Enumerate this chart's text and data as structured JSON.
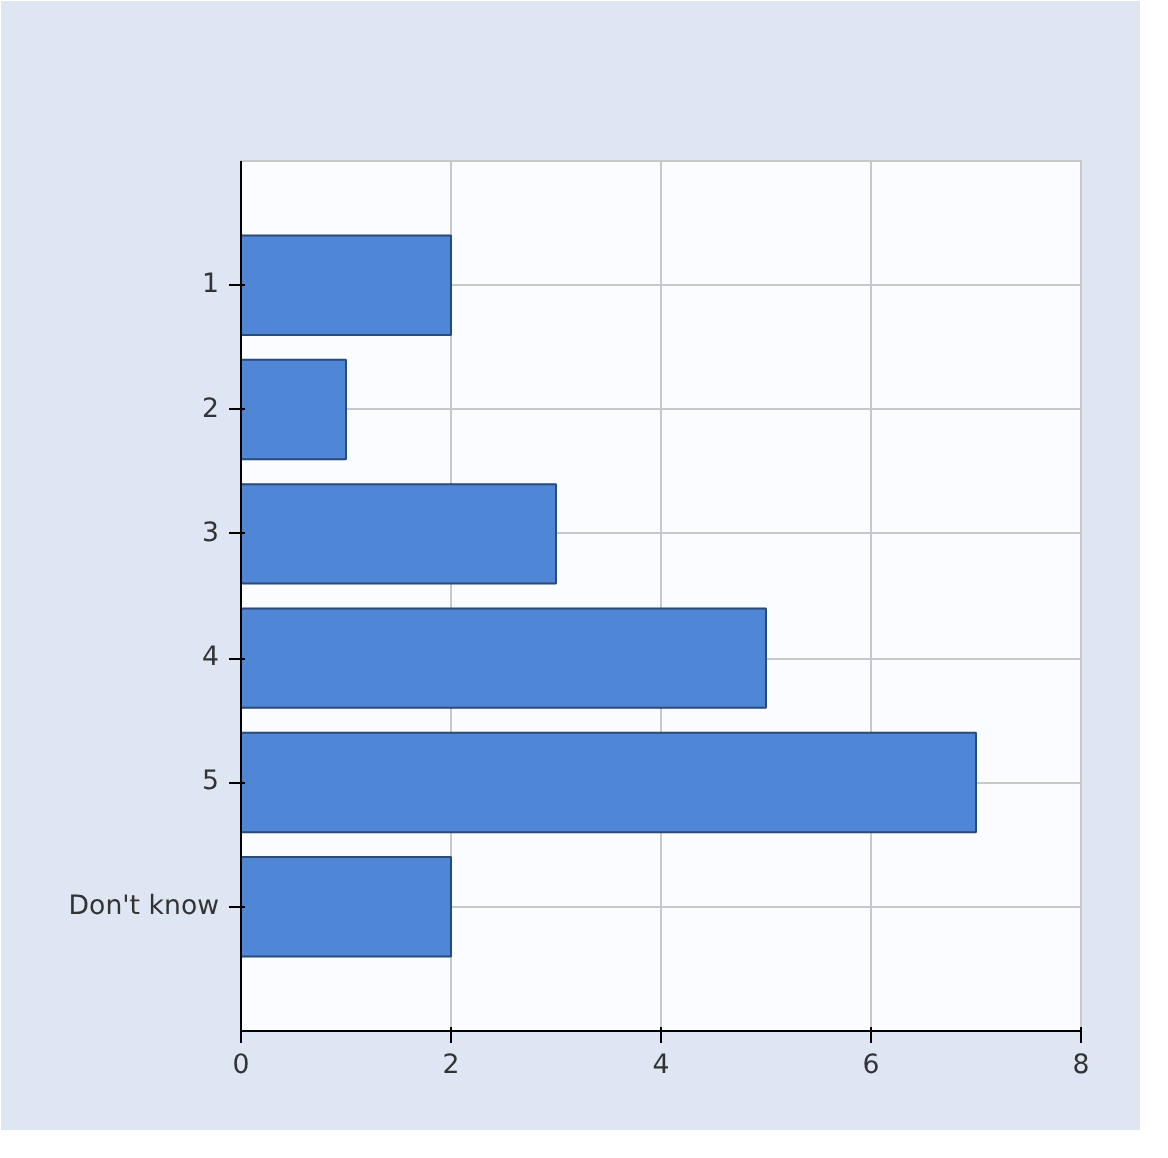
{
  "chart_data": {
    "type": "bar",
    "orientation": "horizontal",
    "categories": [
      "1",
      "2",
      "3",
      "4",
      "5",
      "Don't know"
    ],
    "values": [
      2,
      1,
      3,
      5,
      7,
      2
    ],
    "color": "#4f87d6",
    "xlim": [
      0,
      8
    ],
    "xticks": [
      0,
      2,
      4,
      6,
      8
    ],
    "grid": true
  }
}
